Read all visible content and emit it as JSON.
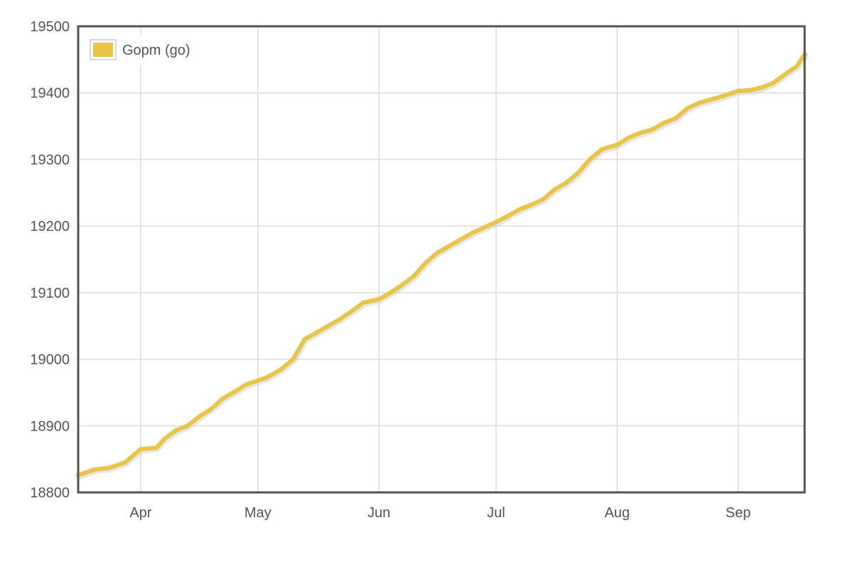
{
  "chart_data": {
    "type": "line",
    "title": "",
    "xlabel": "",
    "ylabel": "",
    "ylim": [
      18800,
      19500
    ],
    "xlim": [
      "2015-03-16",
      "2015-09-18"
    ],
    "grid": true,
    "legend": {
      "placement": "top-left"
    },
    "y_ticks": [
      "18800",
      "18900",
      "19000",
      "19100",
      "19200",
      "19300",
      "19400",
      "19500"
    ],
    "x_ticks": [
      {
        "date": "2015-04-01",
        "label": "Apr"
      },
      {
        "date": "2015-05-01",
        "label": "May"
      },
      {
        "date": "2015-06-01",
        "label": "Jun"
      },
      {
        "date": "2015-07-01",
        "label": "Jul"
      },
      {
        "date": "2015-08-01",
        "label": "Aug"
      },
      {
        "date": "2015-09-01",
        "label": "Sep"
      }
    ],
    "series": [
      {
        "name": "Gopm (go)",
        "color": "#e8c547",
        "x": [
          "2015-03-16",
          "2015-03-20",
          "2015-03-24",
          "2015-03-28",
          "2015-04-01",
          "2015-04-05",
          "2015-04-07",
          "2015-04-10",
          "2015-04-13",
          "2015-04-16",
          "2015-04-19",
          "2015-04-22",
          "2015-04-25",
          "2015-04-28",
          "2015-05-01",
          "2015-05-03",
          "2015-05-05",
          "2015-05-07",
          "2015-05-10",
          "2015-05-13",
          "2015-05-16",
          "2015-05-19",
          "2015-05-22",
          "2015-05-25",
          "2015-05-28",
          "2015-06-01",
          "2015-06-04",
          "2015-06-07",
          "2015-06-10",
          "2015-06-13",
          "2015-06-16",
          "2015-06-19",
          "2015-06-22",
          "2015-06-25",
          "2015-06-28",
          "2015-07-01",
          "2015-07-04",
          "2015-07-07",
          "2015-07-10",
          "2015-07-13",
          "2015-07-16",
          "2015-07-19",
          "2015-07-22",
          "2015-07-25",
          "2015-07-28",
          "2015-08-01",
          "2015-08-04",
          "2015-08-07",
          "2015-08-10",
          "2015-08-13",
          "2015-08-16",
          "2015-08-19",
          "2015-08-22",
          "2015-08-25",
          "2015-08-28",
          "2015-09-01",
          "2015-09-04",
          "2015-09-07",
          "2015-09-10",
          "2015-09-13",
          "2015-09-16",
          "2015-09-18"
        ],
        "y": [
          18826,
          18834,
          18837,
          18845,
          18865,
          18867,
          18880,
          18893,
          18900,
          18914,
          18925,
          18941,
          18951,
          18962,
          18968,
          18972,
          18978,
          18985,
          19000,
          19030,
          19040,
          19050,
          19060,
          19072,
          19085,
          19090,
          19100,
          19112,
          19125,
          19145,
          19160,
          19170,
          19180,
          19190,
          19198,
          19206,
          19215,
          19225,
          19232,
          19240,
          19255,
          19265,
          19280,
          19300,
          19315,
          19322,
          19333,
          19340,
          19345,
          19355,
          19362,
          19377,
          19385,
          19390,
          19395,
          19403,
          19404,
          19408,
          19415,
          19428,
          19440,
          19458
        ]
      }
    ]
  }
}
